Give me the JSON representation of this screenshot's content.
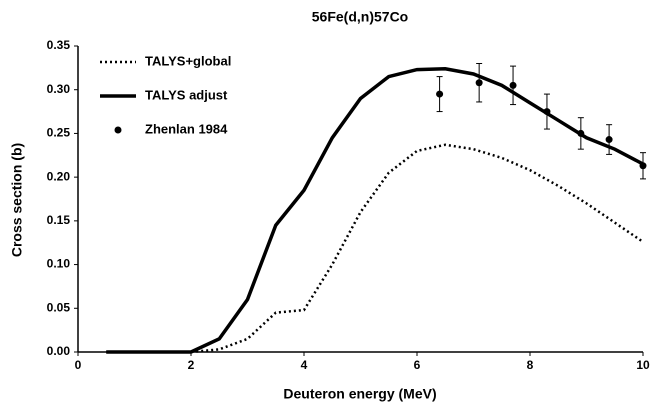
{
  "chart_data": {
    "type": "line",
    "title": "56Fe(d,n)57Co",
    "x_label": "Deuteron energy (MeV)",
    "y_label": "Cross section (b)",
    "xlim": [
      0,
      10
    ],
    "xticks": [
      0,
      2,
      4,
      6,
      8,
      10
    ],
    "ylim": [
      0,
      0.35
    ],
    "yticks": [
      {
        "value": 0,
        "label": "0.00"
      },
      {
        "value": 0.05,
        "label": "0.05"
      },
      {
        "value": 0.1,
        "label": "0.10"
      },
      {
        "value": 0.15,
        "label": "0.15"
      },
      {
        "value": 0.2,
        "label": "0.20"
      },
      {
        "value": 0.25,
        "label": "0.25"
      },
      {
        "value": 0.3,
        "label": "0.30"
      },
      {
        "value": 0.35,
        "label": "0.35"
      }
    ],
    "legend": "upper left",
    "series": [
      {
        "name": "TALYS+global",
        "color": "#000000",
        "style": "dotted",
        "x": [
          0.5,
          2,
          2.5,
          3,
          3.5,
          4,
          4.5,
          5,
          5.5,
          6,
          6.5,
          7,
          7.5,
          8,
          8.5,
          9,
          9.5,
          10
        ],
        "values": [
          0,
          0,
          0.003,
          0.015,
          0.045,
          0.048,
          0.1,
          0.16,
          0.205,
          0.23,
          0.237,
          0.232,
          0.222,
          0.208,
          0.19,
          0.17,
          0.148,
          0.126
        ]
      },
      {
        "name": "TALYS adjust",
        "color": "#000000",
        "style": "solid",
        "x": [
          0.5,
          2,
          2.5,
          3,
          3.5,
          4,
          4.5,
          5,
          5.5,
          6,
          6.5,
          7,
          7.5,
          8,
          8.5,
          9,
          9.5,
          10
        ],
        "values": [
          0,
          0,
          0.015,
          0.06,
          0.145,
          0.185,
          0.245,
          0.29,
          0.315,
          0.323,
          0.324,
          0.318,
          0.305,
          0.285,
          0.265,
          0.245,
          0.232,
          0.215
        ]
      },
      {
        "name": "Zhenlan 1984",
        "color": "#000000",
        "style": "points",
        "x": [
          6.4,
          7.1,
          7.7,
          8.3,
          8.9,
          9.4,
          10
        ],
        "values": [
          0.295,
          0.308,
          0.305,
          0.275,
          0.25,
          0.243,
          0.213
        ],
        "errors": [
          0.02,
          0.022,
          0.022,
          0.02,
          0.018,
          0.017,
          0.015
        ]
      }
    ]
  }
}
